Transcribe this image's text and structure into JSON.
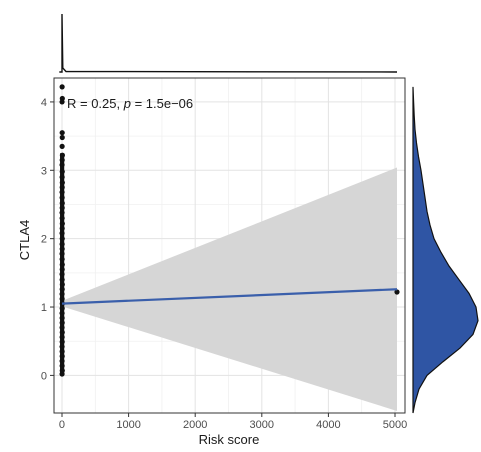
{
  "chart_data": {
    "type": "scatter",
    "title": "",
    "xlabel": "Risk score",
    "ylabel": "CTLA4",
    "xlim": [
      -120,
      5150
    ],
    "ylim": [
      -0.55,
      4.35
    ],
    "xticks": [
      0,
      1000,
      2000,
      3000,
      4000,
      5000
    ],
    "xtick_labels": [
      "0",
      "1000",
      "2000",
      "3000",
      "4000",
      "5000"
    ],
    "yticks": [
      0,
      1,
      2,
      3,
      4
    ],
    "ytick_labels": [
      "0",
      "1",
      "2",
      "3",
      "4"
    ],
    "grid": true,
    "annotation": {
      "segments": [
        {
          "text": "R = 0.25, ",
          "italic": false
        },
        {
          "text": "p",
          "italic": true
        },
        {
          "text": " = 1.5e−06",
          "italic": false
        }
      ]
    },
    "points": [
      {
        "x": 2,
        "y": 4.22
      },
      {
        "x": 5,
        "y": 4.05
      },
      {
        "x": 1,
        "y": 4.0
      },
      {
        "x": 3,
        "y": 3.55
      },
      {
        "x": 4,
        "y": 3.48
      },
      {
        "x": 2,
        "y": 3.35
      },
      {
        "x": 6,
        "y": 3.22
      },
      {
        "x": 3,
        "y": 3.15
      },
      {
        "x": 1,
        "y": 3.08
      },
      {
        "x": 4,
        "y": 2.98
      },
      {
        "x": 2,
        "y": 2.9
      },
      {
        "x": 5,
        "y": 2.82
      },
      {
        "x": 3,
        "y": 2.75
      },
      {
        "x": 1,
        "y": 2.68
      },
      {
        "x": 2,
        "y": 2.6
      },
      {
        "x": 4,
        "y": 2.52
      },
      {
        "x": 3,
        "y": 2.45
      },
      {
        "x": 1,
        "y": 2.38
      },
      {
        "x": 2,
        "y": 2.3
      },
      {
        "x": 5,
        "y": 2.22
      },
      {
        "x": 3,
        "y": 2.15
      },
      {
        "x": 1,
        "y": 2.08
      },
      {
        "x": 4,
        "y": 2.0
      },
      {
        "x": 2,
        "y": 1.92
      },
      {
        "x": 3,
        "y": 1.85
      },
      {
        "x": 1,
        "y": 1.78
      },
      {
        "x": 2,
        "y": 1.7
      },
      {
        "x": 4,
        "y": 1.62
      },
      {
        "x": 3,
        "y": 1.55
      },
      {
        "x": 1,
        "y": 1.48
      },
      {
        "x": 2,
        "y": 1.4
      },
      {
        "x": 5,
        "y": 1.33
      },
      {
        "x": 3,
        "y": 1.26
      },
      {
        "x": 1,
        "y": 1.19
      },
      {
        "x": 2,
        "y": 1.12
      },
      {
        "x": 4,
        "y": 1.05
      },
      {
        "x": 3,
        "y": 0.98
      },
      {
        "x": 1,
        "y": 0.91
      },
      {
        "x": 2,
        "y": 0.84
      },
      {
        "x": 3,
        "y": 0.77
      },
      {
        "x": 1,
        "y": 0.7
      },
      {
        "x": 4,
        "y": 0.63
      },
      {
        "x": 2,
        "y": 0.56
      },
      {
        "x": 3,
        "y": 0.49
      },
      {
        "x": 1,
        "y": 0.42
      },
      {
        "x": 2,
        "y": 0.35
      },
      {
        "x": 3,
        "y": 0.28
      },
      {
        "x": 1,
        "y": 0.21
      },
      {
        "x": 2,
        "y": 0.14
      },
      {
        "x": 4,
        "y": 0.07
      },
      {
        "x": 1,
        "y": 0.02
      },
      {
        "x": 5030,
        "y": 1.22
      }
    ],
    "regression": {
      "x_start": 0,
      "x_end": 5030,
      "y_start": 1.05,
      "y_end": 1.26,
      "ci_low_start": 1.01,
      "ci_high_start": 1.09,
      "ci_low_end": -0.52,
      "ci_high_end": 3.04,
      "line_color": "#3a5fab",
      "ci_color": "#d6d6d6"
    },
    "marginal_top": {
      "type": "density",
      "description_values": [
        0,
        0.02,
        5030
      ]
    },
    "marginal_right": {
      "type": "density",
      "fill": "#2f55a4"
    }
  }
}
